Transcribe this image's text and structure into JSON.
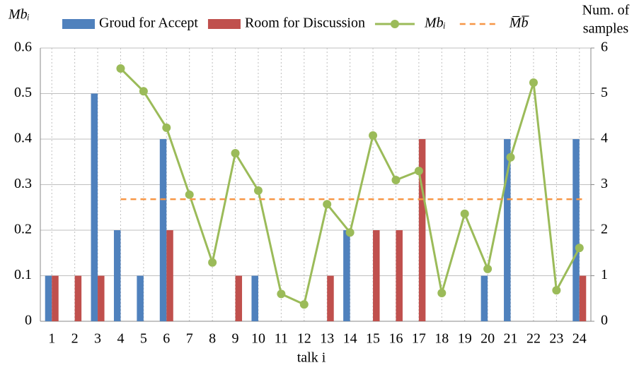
{
  "chart_data": {
    "type": "bar-line",
    "y_label": "Mbᵢ",
    "y2_label": [
      "Num. of",
      "samples"
    ],
    "x_label": "talk i",
    "categories": [
      "1",
      "2",
      "3",
      "4",
      "5",
      "6",
      "7",
      "8",
      "9",
      "10",
      "11",
      "12",
      "13",
      "14",
      "15",
      "16",
      "17",
      "18",
      "19",
      "20",
      "21",
      "22",
      "23",
      "24"
    ],
    "series": [
      {
        "name": "Groud for Accept",
        "color": "#4f81bd",
        "kind": "bar",
        "axis": "y2",
        "values": [
          1,
          0,
          5,
          2,
          1,
          4,
          0,
          0,
          0,
          1,
          0,
          0,
          0,
          2,
          0,
          0,
          0,
          0,
          0,
          1,
          4,
          0,
          0,
          4
        ]
      },
      {
        "name": "Room for Discussion",
        "color": "#c0504d",
        "kind": "bar",
        "axis": "y2",
        "values": [
          1,
          1,
          1,
          0,
          0,
          2,
          0,
          0,
          1,
          0,
          0,
          0,
          1,
          0,
          2,
          2,
          4,
          0,
          0,
          0,
          0,
          0,
          0,
          1
        ]
      },
      {
        "name": "Mbᵢ",
        "color": "#9bbb59",
        "kind": "line",
        "values": [
          null,
          null,
          null,
          0.555,
          0.505,
          0.425,
          0.278,
          0.129,
          0.369,
          0.287,
          0.06,
          0.037,
          0.257,
          0.195,
          0.408,
          0.31,
          0.33,
          0.062,
          0.236,
          0.115,
          0.36,
          0.524,
          0.068,
          0.161
        ]
      }
    ],
    "mean_line": {
      "name": "M̅b̅",
      "color": "#f79646",
      "value": 0.268
    },
    "ylim": [
      0,
      0.6
    ],
    "yticks": [
      0,
      0.1,
      0.2,
      0.3,
      0.4,
      0.5,
      0.6
    ],
    "y2lim": [
      0,
      6
    ],
    "y2ticks": [
      0,
      1,
      2,
      3,
      4,
      5,
      6
    ],
    "grid": true
  }
}
